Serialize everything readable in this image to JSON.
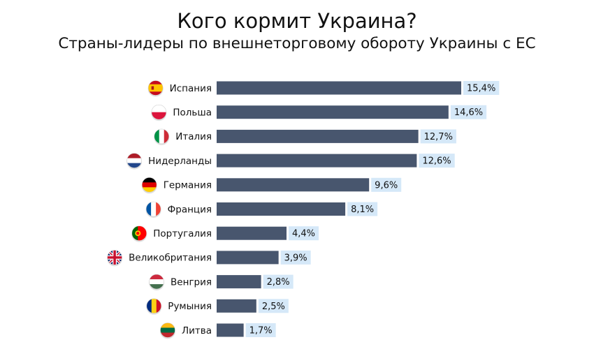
{
  "title": "Кого кормит Украина?",
  "subtitle": "Страны-лидеры по внешнеторговому обороту Украины с ЕС",
  "colors": {
    "bar": "#48566e",
    "label_bg": "#d5e8f8"
  },
  "chart_data": {
    "type": "bar",
    "orientation": "horizontal",
    "title": "Кого кормит Украина?",
    "subtitle": "Страны-лидеры по внешнеторговому обороту Украины с ЕС",
    "categories": [
      "Испания",
      "Польша",
      "Италия",
      "Нидерланды",
      "Германия",
      "Франция",
      "Португалия",
      "Великобритания",
      "Венгрия",
      "Румыния",
      "Литва"
    ],
    "values": [
      15.4,
      14.6,
      12.7,
      12.6,
      9.6,
      8.1,
      4.4,
      3.9,
      2.8,
      2.5,
      1.7
    ],
    "value_labels": [
      "15,4%",
      "14,6%",
      "12,7%",
      "12,6%",
      "9,6%",
      "8,1%",
      "4,4%",
      "3,9%",
      "2,8%",
      "2,5%",
      "1,7%"
    ],
    "icons": [
      "flag-spain-icon",
      "flag-poland-icon",
      "flag-italy-icon",
      "flag-netherlands-icon",
      "flag-germany-icon",
      "flag-france-icon",
      "flag-portugal-icon",
      "flag-uk-icon",
      "flag-hungary-icon",
      "flag-romania-icon",
      "flag-lithuania-icon"
    ],
    "xlim": [
      0,
      15.4
    ],
    "grid": false,
    "legend": "none"
  }
}
